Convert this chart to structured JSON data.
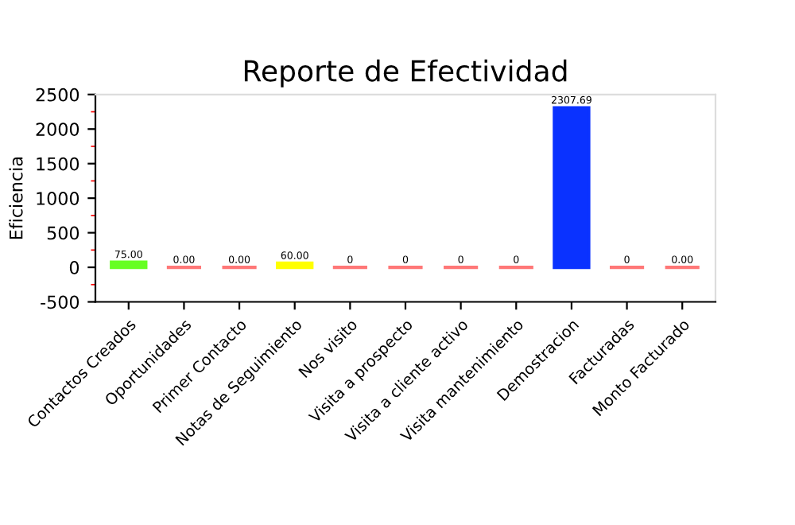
{
  "chart_data": {
    "type": "bar",
    "title": "Reporte de Efectividad",
    "ylabel": "Eficiencia",
    "categories": [
      "Contactos Creados",
      "Oportunidades",
      "Primer Contacto",
      "Notas de Seguimiento",
      "Nos visito",
      "Visita a prospecto",
      "Visita a cliente activo",
      "Visita mantenimiento",
      "Demostracion",
      "Facturadas",
      "Monto Facturado"
    ],
    "values": [
      75,
      0,
      0,
      60,
      0,
      0,
      0,
      0,
      2307.69,
      0,
      0
    ],
    "colors": [
      "#66ff22",
      "#ff7777",
      "#ff7777",
      "#ffff00",
      "#ff7777",
      "#ff7777",
      "#ff7777",
      "#ff7777",
      "#0a32ff",
      "#ff7777",
      "#ff7777"
    ],
    "value_labels": [
      "75.00",
      "0.00",
      "0.00",
      "60.00",
      "0",
      "0",
      "0",
      "0",
      "2307.69",
      "0",
      "0.00"
    ],
    "ylim": [
      -500,
      2500
    ],
    "yticks": [
      -500,
      0,
      500,
      1000,
      1500,
      2000,
      2500
    ],
    "grid": false
  }
}
